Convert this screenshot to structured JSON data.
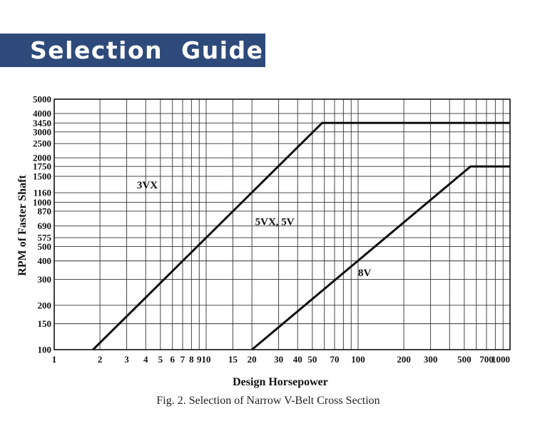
{
  "banner": {
    "title": "Selection  Guide"
  },
  "colors": {
    "banner": "#2e4a7a",
    "ink": "#111111",
    "grid": "#333333"
  },
  "chart_data": {
    "type": "line",
    "xlabel": "Design Horsepower",
    "ylabel": "RPM of Faster Shaft",
    "caption": "Fig. 2. Selection of Narrow V-Belt Cross Section",
    "x_scale": "log",
    "y_scale": "log",
    "xlim": [
      1,
      1000
    ],
    "ylim": [
      100,
      5000
    ],
    "grid": true,
    "x_tick_labels": [
      {
        "v": 1,
        "t": "1"
      },
      {
        "v": 2,
        "t": "2"
      },
      {
        "v": 3,
        "t": "3"
      },
      {
        "v": 4,
        "t": "4"
      },
      {
        "v": 5,
        "t": "5"
      },
      {
        "v": 6,
        "t": "6"
      },
      {
        "v": 7,
        "t": "7"
      },
      {
        "v": 8,
        "t": "8"
      },
      {
        "v": 9,
        "t": "9"
      },
      {
        "v": 10,
        "t": "10"
      },
      {
        "v": 15,
        "t": "15"
      },
      {
        "v": 20,
        "t": "20"
      },
      {
        "v": 30,
        "t": "30"
      },
      {
        "v": 40,
        "t": "40"
      },
      {
        "v": 50,
        "t": "50"
      },
      {
        "v": 70,
        "t": "70"
      },
      {
        "v": 100,
        "t": "100"
      },
      {
        "v": 200,
        "t": "200"
      },
      {
        "v": 300,
        "t": "300"
      },
      {
        "v": 500,
        "t": "500"
      },
      {
        "v": 700,
        "t": "700"
      },
      {
        "v": 1000,
        "t": "1000"
      }
    ],
    "x_grid": [
      1,
      2,
      3,
      4,
      5,
      6,
      7,
      8,
      9,
      10,
      15,
      20,
      30,
      40,
      50,
      60,
      70,
      80,
      90,
      100,
      200,
      300,
      400,
      500,
      600,
      700,
      800,
      900,
      1000
    ],
    "y_tick_labels": [
      "5000",
      "4000",
      "3450",
      "3000",
      "2500",
      "2000",
      "1750",
      "1500",
      "1160",
      "1000",
      "870",
      "690",
      "575",
      "500",
      "400",
      "300",
      "200",
      "150",
      "100"
    ],
    "y_grid": [
      5000,
      4000,
      3450,
      3000,
      2500,
      2000,
      1750,
      1500,
      1160,
      1000,
      870,
      690,
      575,
      500,
      400,
      300,
      200,
      150,
      100
    ],
    "boundaries": [
      {
        "name": "3VX / 5VX, 5V",
        "points": [
          [
            1.8,
            100
          ],
          [
            58,
            3450
          ],
          [
            1000,
            3450
          ]
        ]
      },
      {
        "name": "5VX, 5V / 8V",
        "points": [
          [
            20,
            100
          ],
          [
            550,
            1750
          ],
          [
            1000,
            1750
          ]
        ]
      }
    ],
    "regions": [
      {
        "label": "3VX",
        "x": 3.5,
        "y": 1300
      },
      {
        "label": "5VX, 5V",
        "x": 21,
        "y": 730
      },
      {
        "label": "8V",
        "x": 100,
        "y": 330
      }
    ]
  }
}
